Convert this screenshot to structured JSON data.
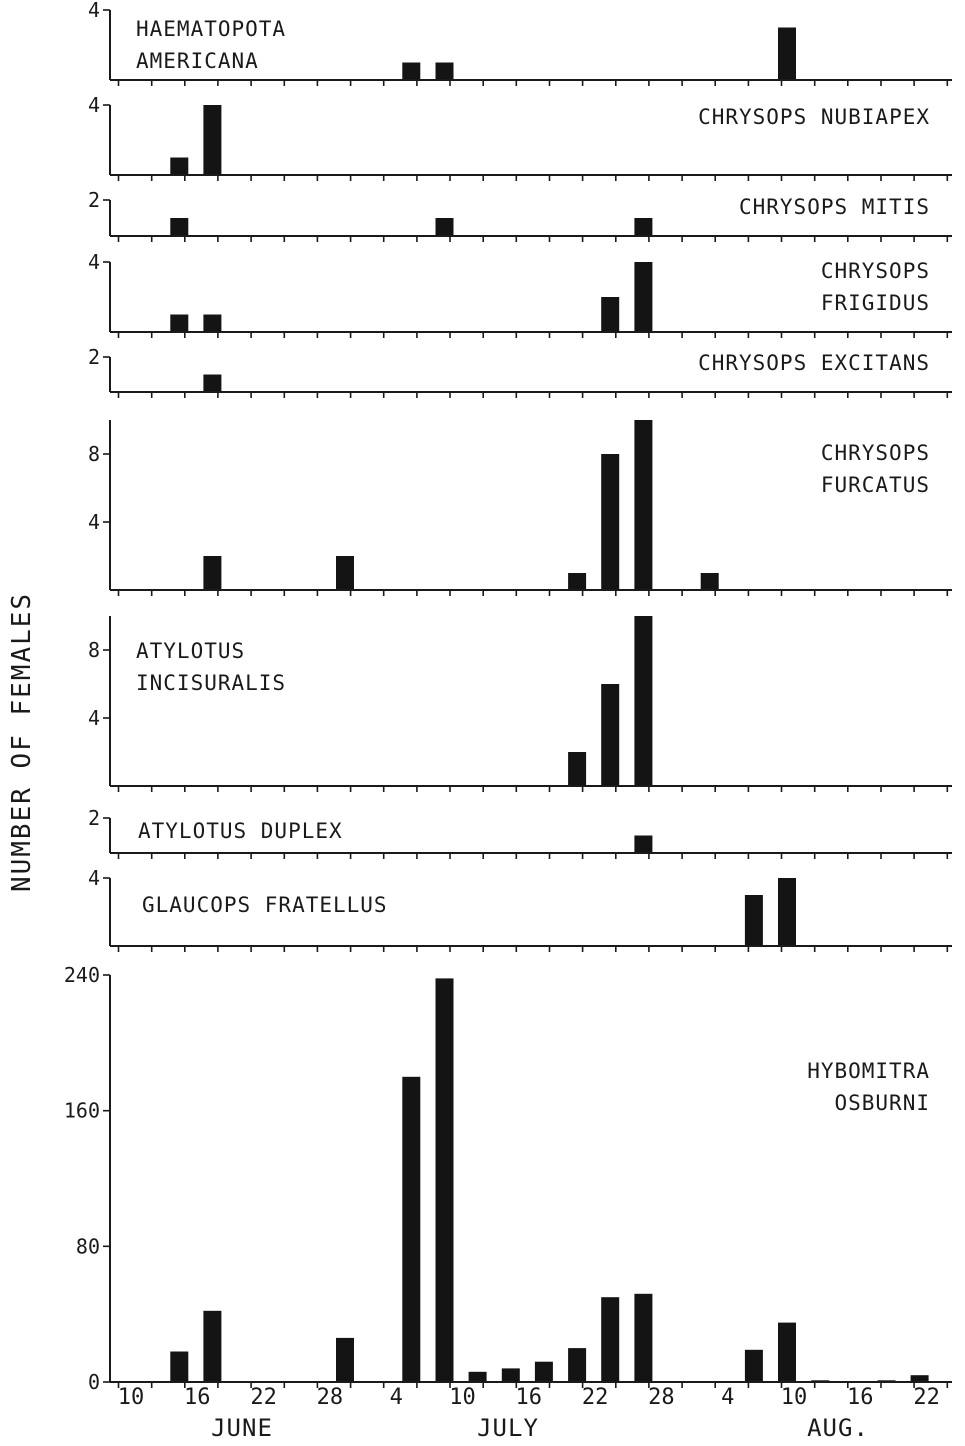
{
  "chart_data": {
    "type": "bar",
    "ylabel": "NUMBER OF FEMALES",
    "x_tick_labels": [
      "10",
      "16",
      "22",
      "28",
      "4",
      "10",
      "16",
      "22",
      "28",
      "4",
      "10",
      "16",
      "22"
    ],
    "months": [
      "JUNE",
      "JULY",
      "AUG."
    ],
    "panels": [
      {
        "label_lines": [
          "HAEMATOPOTA",
          "AMERICANA"
        ],
        "yticks": [
          "4"
        ],
        "ymax": 4,
        "bars": [
          {
            "day": 27,
            "value": 1
          },
          {
            "day": 30,
            "value": 1
          },
          {
            "day": 61,
            "value": 3
          }
        ]
      },
      {
        "label_lines": [
          "CHRYSOPS NUBIAPEX"
        ],
        "yticks": [
          "4"
        ],
        "ymax": 4,
        "bars": [
          {
            "day": 6,
            "value": 1
          },
          {
            "day": 9,
            "value": 4
          }
        ]
      },
      {
        "label_lines": [
          "CHRYSOPS MITIS"
        ],
        "yticks": [
          "2"
        ],
        "ymax": 2,
        "bars": [
          {
            "day": 6,
            "value": 1
          },
          {
            "day": 30,
            "value": 1
          },
          {
            "day": 48,
            "value": 1
          }
        ]
      },
      {
        "label_lines": [
          "CHRYSOPS",
          "FRIGIDUS"
        ],
        "yticks": [
          "4"
        ],
        "ymax": 4,
        "bars": [
          {
            "day": 6,
            "value": 1
          },
          {
            "day": 9,
            "value": 1
          },
          {
            "day": 45,
            "value": 2
          },
          {
            "day": 48,
            "value": 4
          }
        ]
      },
      {
        "label_lines": [
          "CHRYSOPS EXCITANS"
        ],
        "yticks": [
          "2"
        ],
        "ymax": 2,
        "bars": [
          {
            "day": 9,
            "value": 1
          }
        ]
      },
      {
        "label_lines": [
          "CHRYSOPS",
          "FURCATUS"
        ],
        "yticks": [
          "8",
          "4"
        ],
        "ymax": 10,
        "bars": [
          {
            "day": 9,
            "value": 2
          },
          {
            "day": 21,
            "value": 2
          },
          {
            "day": 42,
            "value": 1
          },
          {
            "day": 45,
            "value": 8
          },
          {
            "day": 48,
            "value": 10
          },
          {
            "day": 54,
            "value": 1
          }
        ]
      },
      {
        "label_lines": [
          "ATYLOTUS",
          "INCISURALIS"
        ],
        "yticks": [
          "8",
          "4"
        ],
        "ymax": 10,
        "bars": [
          {
            "day": 42,
            "value": 2
          },
          {
            "day": 45,
            "value": 6
          },
          {
            "day": 48,
            "value": 10
          }
        ]
      },
      {
        "label_lines": [
          "ATYLOTUS DUPLEX"
        ],
        "yticks": [
          "2"
        ],
        "ymax": 2,
        "bars": [
          {
            "day": 48,
            "value": 1
          }
        ]
      },
      {
        "label_lines": [
          "GLAUCOPS FRATELLUS"
        ],
        "yticks": [
          "4"
        ],
        "ymax": 4,
        "bars": [
          {
            "day": 58,
            "value": 3
          },
          {
            "day": 61,
            "value": 4
          }
        ]
      },
      {
        "label_lines": [
          "HYBOMITRA",
          "OSBURNI"
        ],
        "yticks": [
          "240",
          "160",
          "80",
          "0"
        ],
        "ymax": 240,
        "bars": [
          {
            "day": 6,
            "value": 18
          },
          {
            "day": 9,
            "value": 42
          },
          {
            "day": 21,
            "value": 26
          },
          {
            "day": 27,
            "value": 180
          },
          {
            "day": 30,
            "value": 238
          },
          {
            "day": 33,
            "value": 6
          },
          {
            "day": 36,
            "value": 8
          },
          {
            "day": 39,
            "value": 12
          },
          {
            "day": 42,
            "value": 20
          },
          {
            "day": 45,
            "value": 50
          },
          {
            "day": 48,
            "value": 52
          },
          {
            "day": 58,
            "value": 19
          },
          {
            "day": 61,
            "value": 35
          },
          {
            "day": 64,
            "value": 1
          },
          {
            "day": 70,
            "value": 1
          },
          {
            "day": 73,
            "value": 4
          }
        ]
      }
    ]
  }
}
